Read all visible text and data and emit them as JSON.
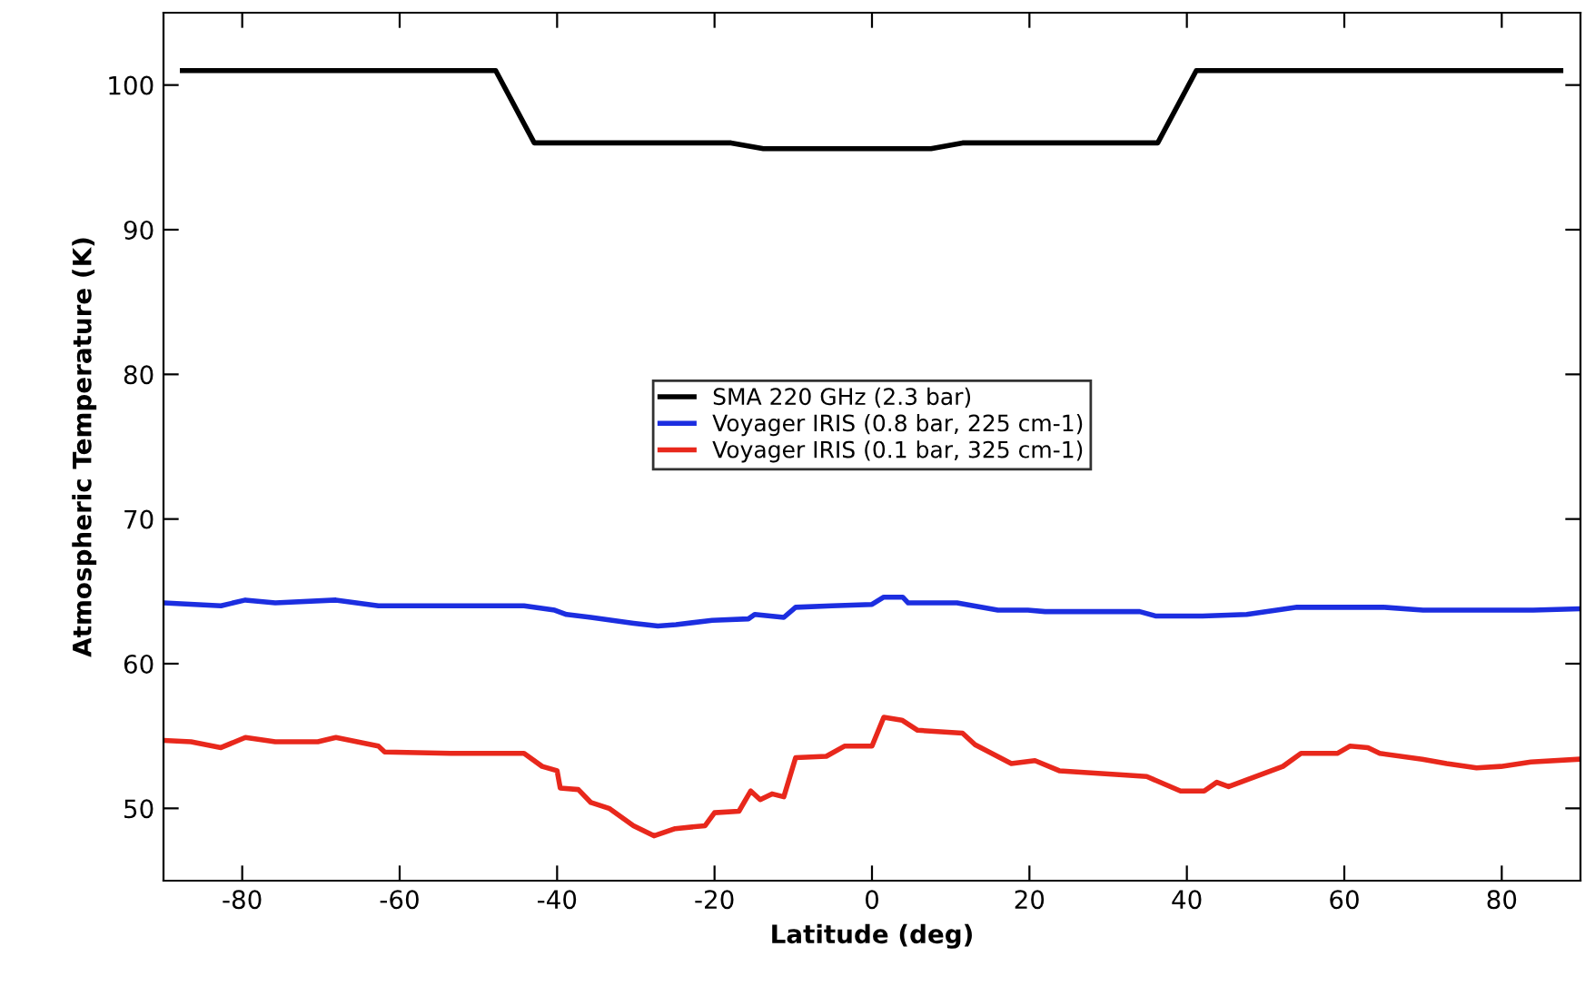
{
  "chart_data": {
    "type": "line",
    "xlabel": "Latitude (deg)",
    "ylabel": "Atmospheric Temperature (K)",
    "xlim": [
      -90,
      90
    ],
    "ylim": [
      45,
      105
    ],
    "xticks": [
      -80,
      -60,
      -40,
      -20,
      0,
      20,
      40,
      60,
      80
    ],
    "yticks": [
      50,
      60,
      70,
      80,
      90,
      100
    ],
    "grid": false,
    "legend": "center",
    "marker": "none",
    "line_style": "solid",
    "series": [
      {
        "name": "SMA 220 GHz (2.3 bar)",
        "color": "#000000",
        "x": [
          -87.6,
          -47.8,
          -42.9,
          -17.9,
          -13.8,
          7.5,
          11.5,
          36.3,
          41.2,
          87.5
        ],
        "values": [
          101,
          101,
          96,
          96,
          95.6,
          95.6,
          96,
          96,
          101,
          101
        ]
      },
      {
        "name": "Voyager IRIS (0.8 bar, 225 cm-1)",
        "color": "#1c2ee0",
        "x": [
          -90,
          -82.7,
          -79.6,
          -75.8,
          -68.1,
          -62.7,
          -44.2,
          -40.3,
          -38.8,
          -35.7,
          -30.3,
          -27.2,
          -24.9,
          -20.3,
          -15.7,
          -14.9,
          -11.2,
          -9.7,
          -5.1,
          0,
          1.5,
          3.9,
          4.6,
          10.8,
          16,
          19.8,
          22,
          34,
          36,
          42,
          47.6,
          54,
          65,
          70,
          84,
          89.9
        ],
        "values": [
          64.2,
          64.0,
          64.4,
          64.2,
          64.4,
          64.0,
          64.0,
          63.7,
          63.4,
          63.2,
          62.8,
          62.6,
          62.7,
          63.0,
          63.1,
          63.4,
          63.2,
          63.9,
          64.0,
          64.1,
          64.6,
          64.6,
          64.2,
          64.2,
          63.7,
          63.7,
          63.6,
          63.6,
          63.3,
          63.3,
          63.4,
          63.9,
          63.9,
          63.7,
          63.7,
          63.8
        ]
      },
      {
        "name": "Voyager IRIS (0.1 bar, 325 cm-1)",
        "color": "#e8281c",
        "x": [
          -90,
          -86.5,
          -82.7,
          -79.6,
          -75.8,
          -70.4,
          -68.1,
          -62.7,
          -61.9,
          -53.5,
          -44.2,
          -41.9,
          -40,
          -39.6,
          -37.3,
          -35.7,
          -33.4,
          -30.3,
          -27.7,
          -25,
          -21.2,
          -20,
          -16.9,
          -15.4,
          -14.2,
          -12.7,
          -11.2,
          -9.7,
          -5.8,
          -3.5,
          0,
          1.5,
          3.8,
          5.8,
          11.5,
          13.1,
          17.7,
          20.7,
          23.8,
          32.3,
          34.9,
          39.2,
          42.2,
          43.8,
          45.3,
          52.2,
          54.5,
          59.1,
          60.7,
          63,
          64.5,
          69.9,
          73,
          76.8,
          79.9,
          83.7,
          89.9
        ],
        "values": [
          54.7,
          54.6,
          54.2,
          54.9,
          54.6,
          54.6,
          54.9,
          54.3,
          53.9,
          53.8,
          53.8,
          52.9,
          52.6,
          51.4,
          51.3,
          50.4,
          50.0,
          48.8,
          48.1,
          48.6,
          48.8,
          49.7,
          49.8,
          51.2,
          50.6,
          51.0,
          50.8,
          53.5,
          53.6,
          54.3,
          54.3,
          56.3,
          56.1,
          55.4,
          55.2,
          54.4,
          53.1,
          53.3,
          52.6,
          52.3,
          52.2,
          51.2,
          51.2,
          51.8,
          51.5,
          52.9,
          53.8,
          53.8,
          54.3,
          54.2,
          53.8,
          53.4,
          53.1,
          52.8,
          52.9,
          53.2,
          53.4
        ]
      }
    ]
  }
}
